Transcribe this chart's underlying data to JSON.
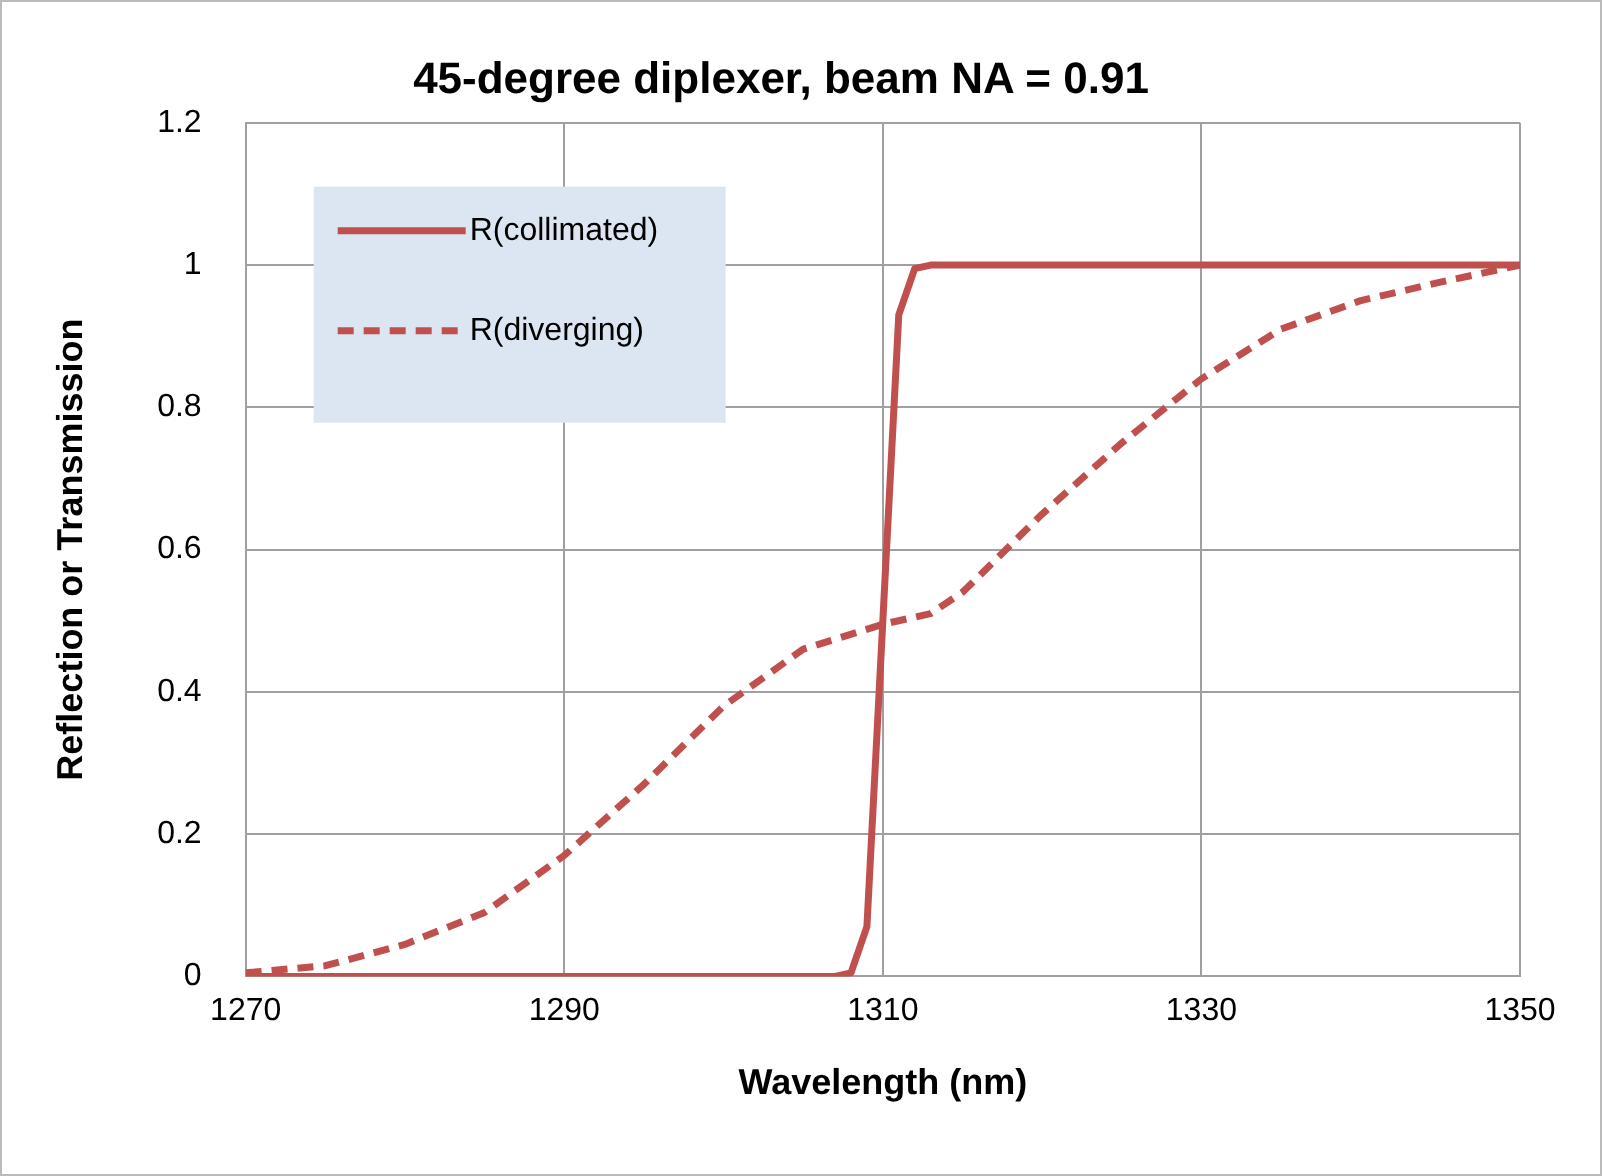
{
  "chart_data": {
    "type": "line",
    "title": "45-degree diplexer, beam NA = 0.91",
    "xlabel": "Wavelength (nm)",
    "ylabel": "Reflection or Transmission",
    "xlim": [
      1270,
      1350
    ],
    "xticks": [
      1270,
      1290,
      1310,
      1330,
      1350
    ],
    "ylim": [
      0,
      1.2
    ],
    "yticks": [
      0,
      0.2,
      0.4,
      0.6,
      0.8,
      1,
      1.2
    ],
    "grid": true,
    "legend": "top left",
    "marker": "none",
    "series": [
      {
        "name": "R(collimated)",
        "color": "#c0504d",
        "line_style": "solid",
        "x": [
          1270,
          1307,
          1308,
          1309,
          1310,
          1311,
          1312,
          1313,
          1350
        ],
        "values": [
          0,
          0,
          0.005,
          0.07,
          0.5,
          0.93,
          0.995,
          1,
          1
        ]
      },
      {
        "name": "R(diverging)",
        "color": "#c0504d",
        "line_style": "dashed",
        "x": [
          1270,
          1275,
          1280,
          1285,
          1290,
          1295,
          1300,
          1305,
          1310,
          1313,
          1315,
          1320,
          1325,
          1330,
          1335,
          1340,
          1345,
          1350
        ],
        "values": [
          0.005,
          0.015,
          0.045,
          0.09,
          0.17,
          0.27,
          0.38,
          0.46,
          0.495,
          0.51,
          0.54,
          0.65,
          0.75,
          0.84,
          0.91,
          0.95,
          0.976,
          1
        ]
      }
    ]
  }
}
